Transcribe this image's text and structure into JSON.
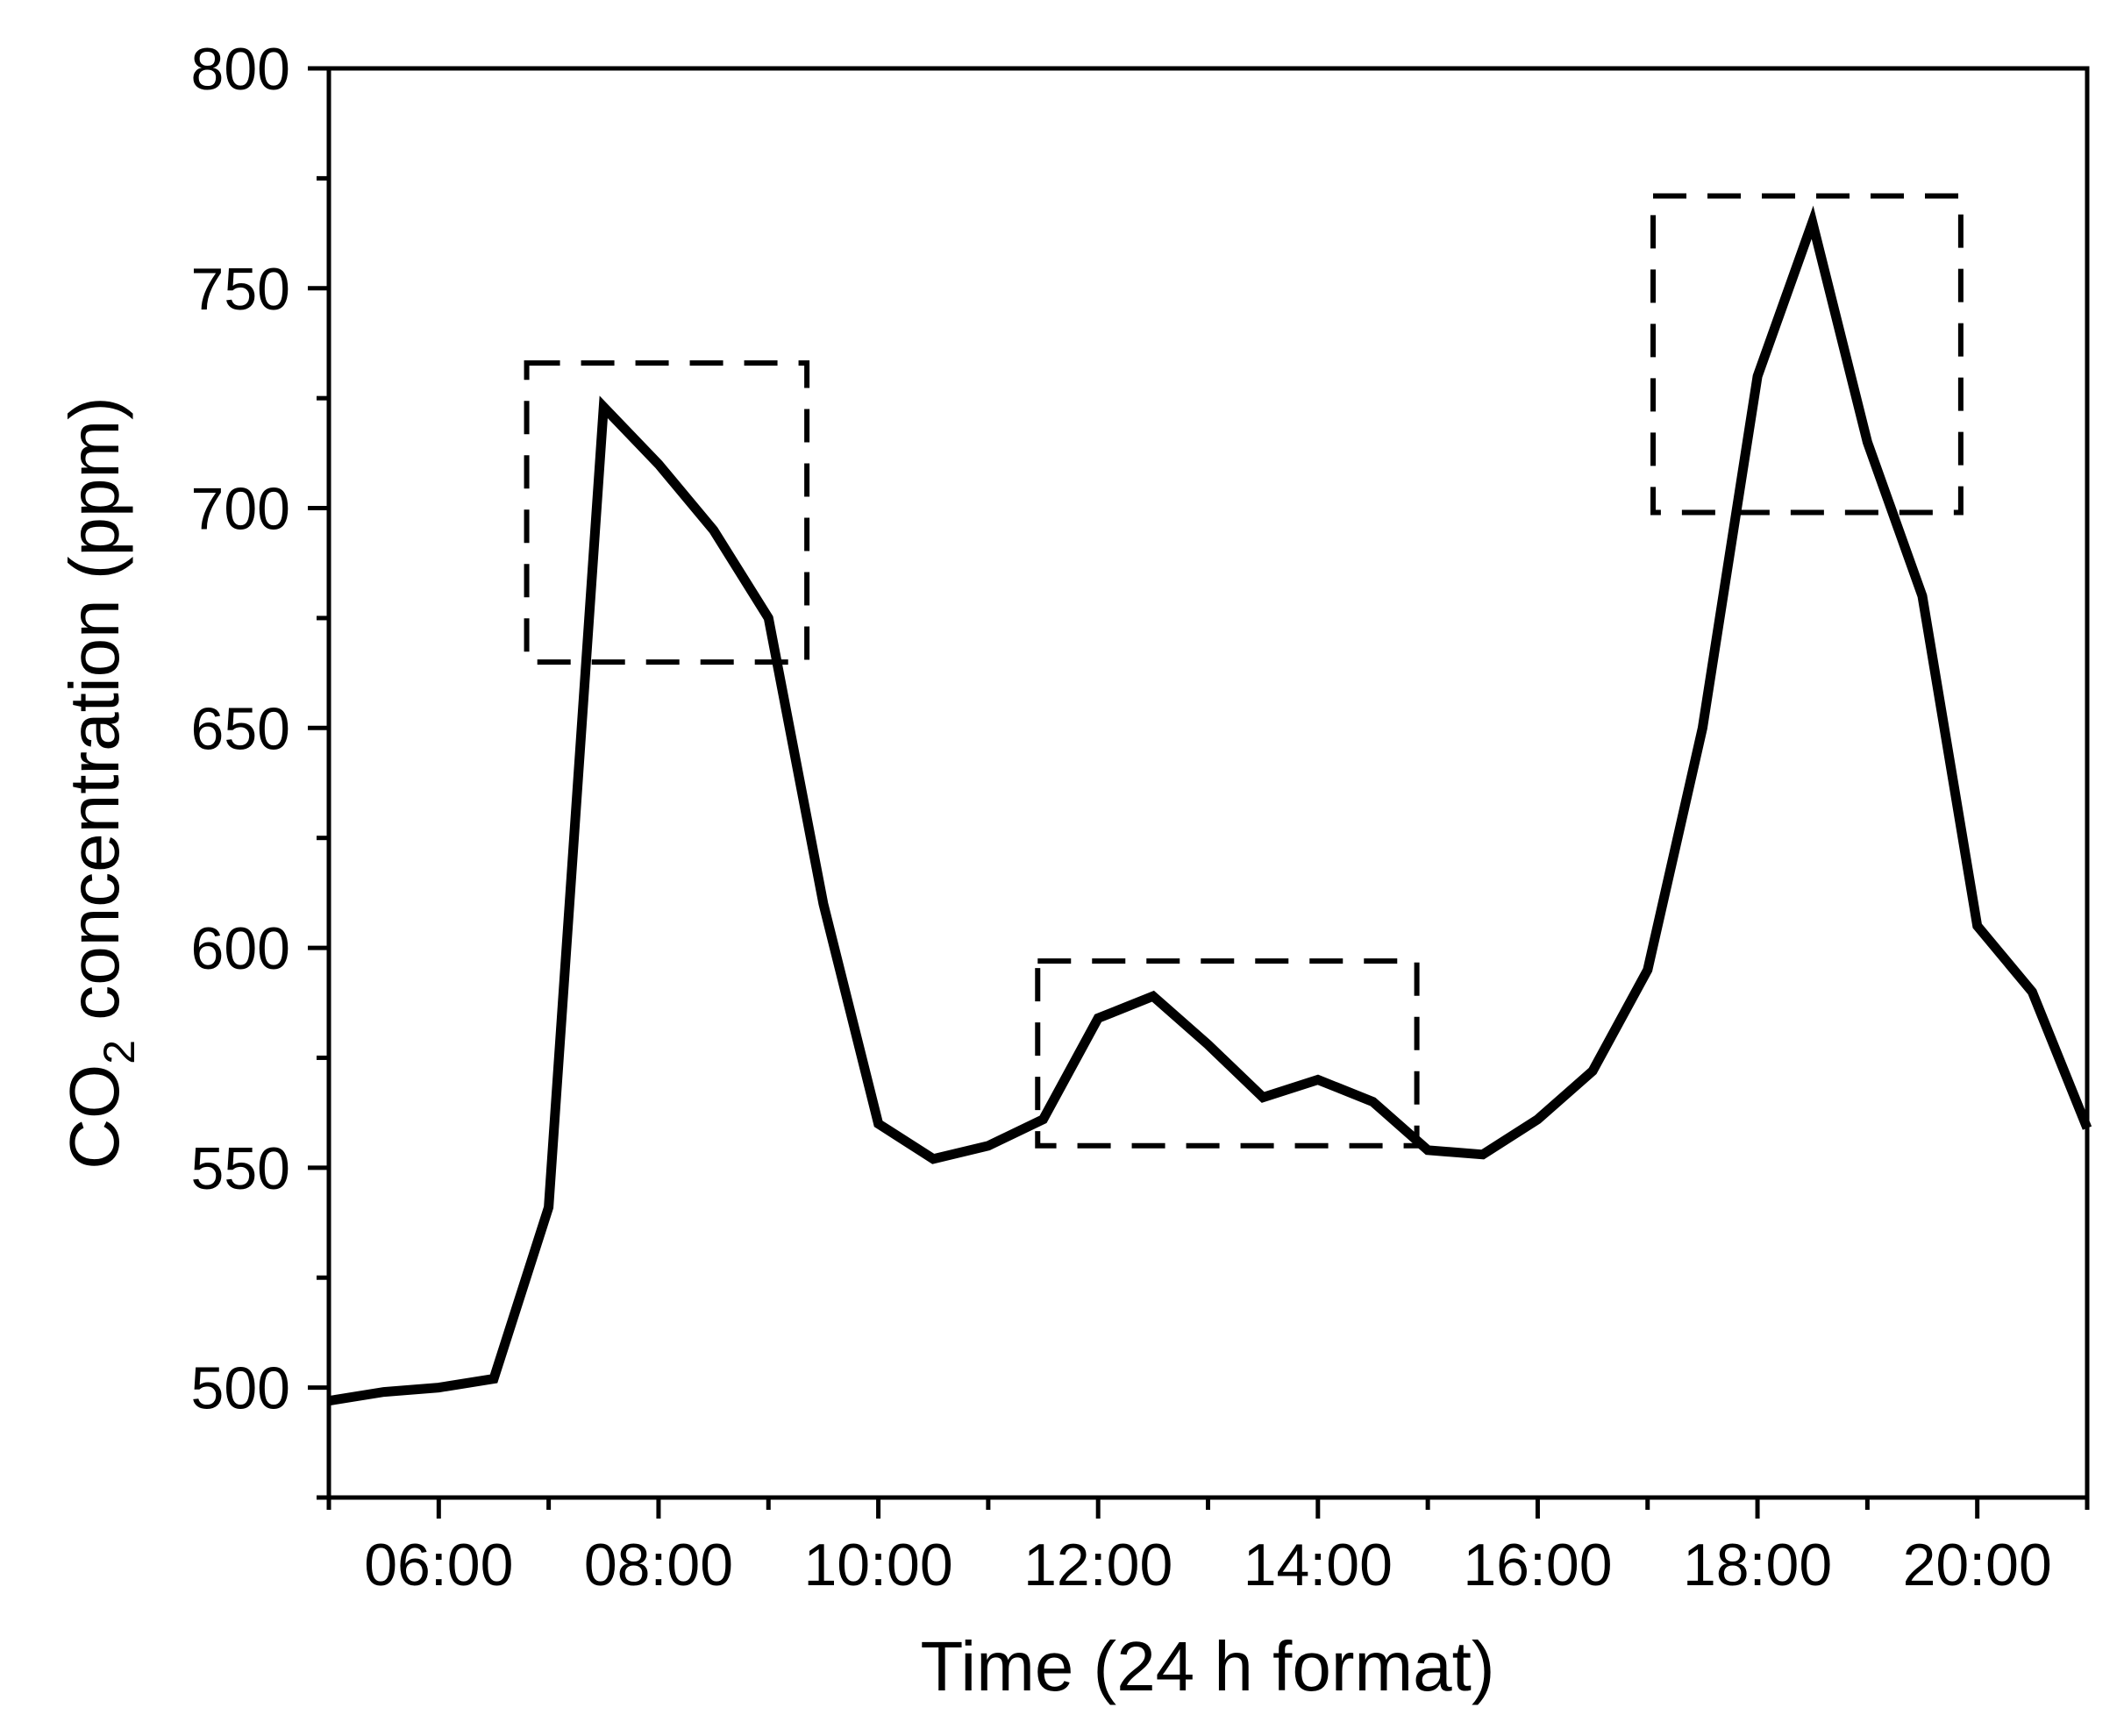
{
  "chart_data": {
    "type": "line",
    "xlabel": "Time (24 h format)",
    "ylabel_prefix": "CO",
    "ylabel_sub": "2",
    "ylabel_suffix": " concentration (ppm)",
    "xlim": [
      5,
      21
    ],
    "ylim": [
      475,
      800
    ],
    "x_ticks": [
      {
        "value": 6,
        "label": "06:00"
      },
      {
        "value": 8,
        "label": "08:00"
      },
      {
        "value": 10,
        "label": "10:00"
      },
      {
        "value": 12,
        "label": "12:00"
      },
      {
        "value": 14,
        "label": "14:00"
      },
      {
        "value": 16,
        "label": "16:00"
      },
      {
        "value": 18,
        "label": "18:00"
      },
      {
        "value": 20,
        "label": "20:00"
      }
    ],
    "x_minor_ticks": [
      5,
      7,
      9,
      11,
      13,
      15,
      17,
      19,
      21
    ],
    "y_ticks": [
      {
        "value": 500,
        "label": "500"
      },
      {
        "value": 550,
        "label": "550"
      },
      {
        "value": 600,
        "label": "600"
      },
      {
        "value": 650,
        "label": "650"
      },
      {
        "value": 700,
        "label": "700"
      },
      {
        "value": 750,
        "label": "750"
      },
      {
        "value": 800,
        "label": "800"
      }
    ],
    "y_minor_ticks": [
      475,
      525,
      575,
      625,
      675,
      725,
      775
    ],
    "series": [
      {
        "x": [
          "05:00",
          "05:30",
          "06:00",
          "06:30",
          "07:00",
          "07:30",
          "08:00",
          "08:30",
          "09:00",
          "09:30",
          "10:00",
          "10:30",
          "11:00",
          "11:30",
          "12:00",
          "12:30",
          "13:00",
          "13:30",
          "14:00",
          "14:30",
          "15:00",
          "15:30",
          "16:00",
          "16:30",
          "17:00",
          "17:30",
          "18:00",
          "18:30",
          "19:00",
          "19:30",
          "20:00",
          "20:30",
          "21:00"
        ],
        "values": [
          497,
          499,
          500,
          502,
          541,
          723,
          710,
          695,
          675,
          610,
          560,
          552,
          555,
          561,
          584,
          589,
          578,
          566,
          570,
          565,
          554,
          553,
          561,
          572,
          595,
          650,
          730,
          765,
          715,
          680,
          605,
          590,
          559
        ],
        "color": "#000000"
      }
    ],
    "highlight_boxes": [
      {
        "x0": 6.8,
        "x1": 9.35,
        "y0": 665,
        "y1": 733
      },
      {
        "x0": 11.45,
        "x1": 14.9,
        "y0": 555,
        "y1": 597
      },
      {
        "x0": 17.05,
        "x1": 19.85,
        "y0": 699,
        "y1": 771
      }
    ],
    "grid": false,
    "legend": "none"
  }
}
